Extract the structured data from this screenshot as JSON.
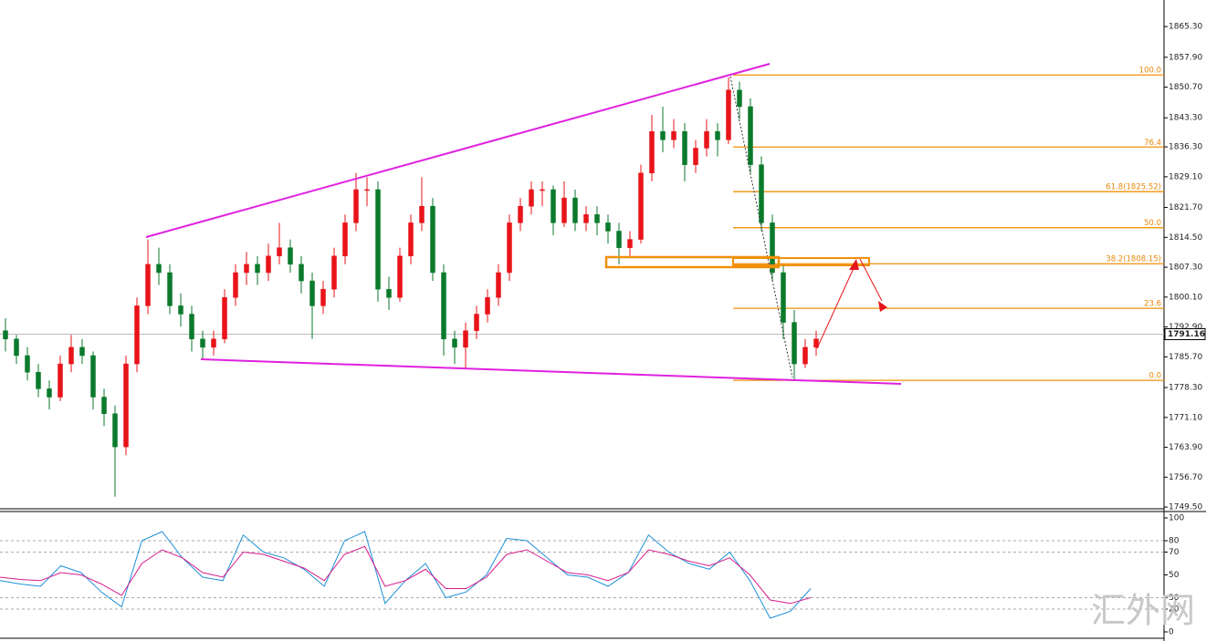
{
  "chart_data": [
    {
      "type": "candlestick",
      "ylim": [
        1749.3,
        1871.7
      ],
      "yticks": [
        {
          "value": 1865.3,
          "label": "1865.30"
        },
        {
          "value": 1857.9,
          "label": "1857.90"
        },
        {
          "value": 1850.7,
          "label": "1850.70"
        },
        {
          "value": 1843.3,
          "label": "1843.30"
        },
        {
          "value": 1836.3,
          "label": "1836.30"
        },
        {
          "value": 1829.1,
          "label": "1829.10"
        },
        {
          "value": 1821.7,
          "label": "1821.70"
        },
        {
          "value": 1814.5,
          "label": "1814.50"
        },
        {
          "value": 1807.3,
          "label": "1807.30"
        },
        {
          "value": 1800.1,
          "label": "1800.10"
        },
        {
          "value": 1792.9,
          "label": "1792.90"
        },
        {
          "value": 1785.7,
          "label": "1785.70"
        },
        {
          "value": 1778.3,
          "label": "1778.30"
        },
        {
          "value": 1771.1,
          "label": "1771.10"
        },
        {
          "value": 1763.9,
          "label": "1763.90"
        },
        {
          "value": 1756.7,
          "label": "1756.70"
        },
        {
          "value": 1749.5,
          "label": "1749.50"
        }
      ],
      "up_color": "#e8141a",
      "down_color": "#0b7a2c",
      "open": [
        1792,
        1790,
        1786,
        1782,
        1778,
        1776,
        1784,
        1788,
        1786,
        1776,
        1772,
        1764,
        1784,
        1798,
        1808,
        1806,
        1798,
        1796,
        1790,
        1788,
        1790,
        1800,
        1806,
        1808,
        1806,
        1810,
        1812,
        1808,
        1804,
        1798,
        1802,
        1810,
        1818,
        1826,
        1826,
        1802,
        1800,
        1810,
        1818,
        1822,
        1806,
        1790,
        1788,
        1792,
        1796,
        1800,
        1806,
        1818,
        1822,
        1826,
        1826,
        1818,
        1824,
        1818,
        1820,
        1818,
        1816,
        1812,
        1814,
        1830,
        1840,
        1838,
        1840,
        1832,
        1836,
        1840,
        1838,
        1850,
        1846,
        1832,
        1818,
        1806,
        1794,
        1784,
        1788
      ],
      "high": [
        1795,
        1791,
        1788,
        1784,
        1780,
        1786,
        1791,
        1790,
        1787,
        1778,
        1774,
        1786,
        1800,
        1814,
        1812,
        1808,
        1801,
        1798,
        1792,
        1792,
        1802,
        1808,
        1811,
        1810,
        1813,
        1818,
        1814,
        1810,
        1806,
        1804,
        1812,
        1820,
        1830,
        1829,
        1828,
        1805,
        1812,
        1820,
        1829,
        1824,
        1808,
        1792,
        1794,
        1798,
        1802,
        1808,
        1820,
        1824,
        1828,
        1828,
        1827,
        1828,
        1826,
        1822,
        1822,
        1820,
        1818,
        1816,
        1832,
        1844,
        1846,
        1843,
        1842,
        1838,
        1843,
        1842,
        1853,
        1852,
        1848,
        1834,
        1820,
        1808,
        1797,
        1790,
        1792
      ],
      "low": [
        1787,
        1784,
        1780,
        1776,
        1773,
        1775,
        1782,
        1784,
        1773,
        1769,
        1752,
        1762,
        1782,
        1796,
        1803,
        1796,
        1793,
        1787,
        1785,
        1786,
        1789,
        1798,
        1803,
        1803,
        1804,
        1808,
        1806,
        1801,
        1790,
        1796,
        1800,
        1808,
        1816,
        1822,
        1799,
        1797,
        1799,
        1808,
        1816,
        1804,
        1786,
        1784,
        1783,
        1790,
        1794,
        1798,
        1804,
        1816,
        1820,
        1822,
        1815,
        1817,
        1816,
        1816,
        1815,
        1813,
        1808,
        1810,
        1813,
        1828,
        1835,
        1836,
        1828,
        1830,
        1834,
        1834,
        1837,
        1843,
        1830,
        1816,
        1804,
        1790,
        1780,
        1783,
        1786
      ],
      "close": [
        1790,
        1786,
        1782,
        1778,
        1776,
        1784,
        1788,
        1786,
        1776,
        1772,
        1764,
        1784,
        1798,
        1808,
        1806,
        1798,
        1796,
        1790,
        1788,
        1790,
        1800,
        1806,
        1808,
        1806,
        1810,
        1812,
        1808,
        1804,
        1798,
        1802,
        1810,
        1818,
        1826,
        1826,
        1802,
        1800,
        1810,
        1818,
        1822,
        1806,
        1790,
        1788,
        1792,
        1796,
        1800,
        1806,
        1818,
        1822,
        1826,
        1826,
        1818,
        1824,
        1818,
        1820,
        1818,
        1816,
        1812,
        1814,
        1830,
        1840,
        1838,
        1840,
        1832,
        1836,
        1840,
        1838,
        1850,
        1846,
        1832,
        1818,
        1806,
        1794,
        1784,
        1788,
        1790
      ],
      "last_price": 1791.16,
      "fib": {
        "high": 1853.63,
        "low": 1780.03,
        "color": "#f0900a",
        "levels": [
          {
            "value": 100,
            "label": "100.0"
          },
          76.4,
          {
            "value": 61.8,
            "label": "61.8(1825.52)"
          },
          {
            "value": 50,
            "label": "50.0"
          },
          {
            "value": 38.2,
            "label": "38.2(1808.15)"
          },
          23.6,
          {
            "value": 0,
            "label": "0.0"
          }
        ]
      }
    },
    {
      "type": "line",
      "ylim": [
        -5.6,
        104.8
      ],
      "yticks": [
        100,
        80,
        70,
        50,
        30,
        20,
        0
      ],
      "grid_levels": [
        80,
        70,
        30,
        20
      ],
      "series": [
        {
          "color": "#1e90d8",
          "values": [
            45,
            42,
            40,
            58,
            52,
            35,
            22,
            80,
            88,
            65,
            48,
            45,
            85,
            70,
            65,
            55,
            40,
            80,
            88,
            25,
            45,
            60,
            30,
            35,
            50,
            82,
            80,
            65,
            50,
            48,
            40,
            52,
            85,
            70,
            60,
            55,
            70,
            45,
            12,
            18,
            38
          ]
        },
        {
          "color": "#d81b8c",
          "values": [
            48,
            46,
            45,
            52,
            50,
            42,
            32,
            60,
            72,
            65,
            52,
            48,
            70,
            68,
            62,
            56,
            45,
            68,
            75,
            40,
            45,
            55,
            38,
            38,
            48,
            68,
            72,
            62,
            52,
            50,
            45,
            52,
            72,
            68,
            62,
            58,
            65,
            50,
            28,
            25,
            30
          ]
        }
      ]
    }
  ],
  "watermark": "汇外网"
}
